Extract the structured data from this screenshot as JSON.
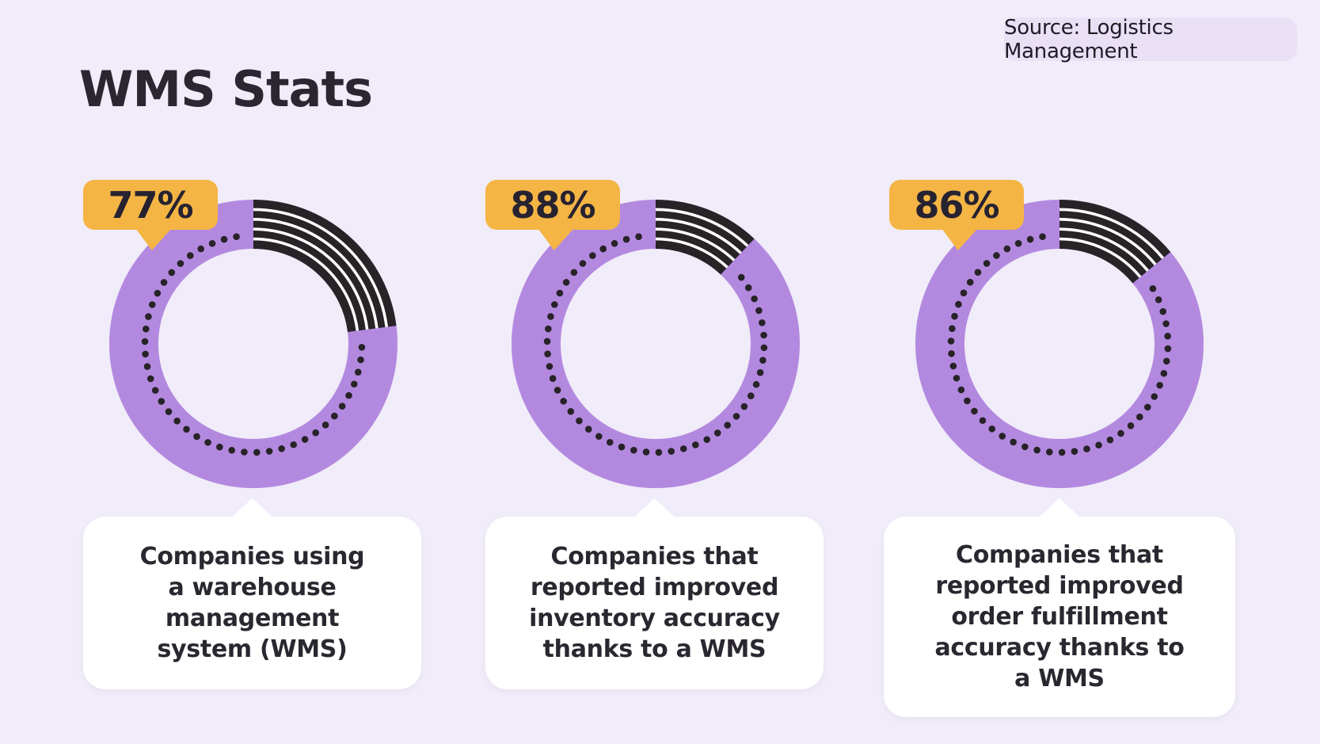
{
  "title": "WMS Stats",
  "source_badge": {
    "label": "Source: Logistics Management"
  },
  "colors": {
    "background": "#F1ECF9",
    "ring_fill": "#B389E0",
    "ring_remainder": "#272327",
    "stripe": "#FFFFFF",
    "dot": "#272327",
    "badge_bg": "#F5B545",
    "badge_text": "#262230",
    "card_bg": "#FFFFFF",
    "text_dark": "#2B2730",
    "source_badge_bg": "#E9E0F6"
  },
  "chart_data": [
    {
      "type": "donut",
      "badge_label": "77%",
      "value_pct": 77,
      "remainder_pct": 23,
      "caption": "Companies using\na warehouse\nmanagement\nsystem (WMS)"
    },
    {
      "type": "donut",
      "badge_label": "88%",
      "value_pct": 88,
      "remainder_pct": 12,
      "caption": "Companies that\nreported improved\ninventory accuracy\nthanks to a WMS"
    },
    {
      "type": "donut",
      "badge_label": "86%",
      "value_pct": 86,
      "remainder_pct": 14,
      "caption": "Companies that\nreported improved\norder fulfillment\naccuracy thanks to\na WMS"
    }
  ]
}
